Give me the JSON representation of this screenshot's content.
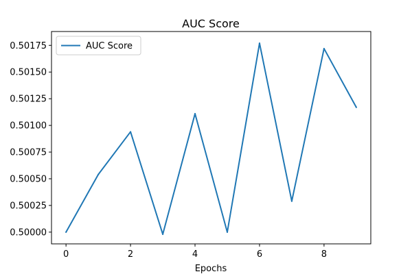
{
  "chart_data": {
    "type": "line",
    "title": "AUC Score",
    "xlabel": "Epochs",
    "ylabel": "",
    "x": [
      0,
      1,
      2,
      3,
      4,
      5,
      6,
      7,
      8,
      9
    ],
    "series": [
      {
        "name": "AUC Score",
        "color": "#1f77b4",
        "values": [
          0.5,
          0.50054,
          0.50094,
          0.49998,
          0.50111,
          0.5,
          0.50177,
          0.50029,
          0.50172,
          0.50117
        ]
      }
    ],
    "xlim": [
      -0.45,
      9.45
    ],
    "ylim": [
      0.49989,
      0.50188
    ],
    "xticks": [
      0,
      2,
      4,
      6,
      8
    ],
    "xtick_labels": [
      "0",
      "2",
      "4",
      "6",
      "8"
    ],
    "yticks": [
      0.5,
      0.50025,
      0.5005,
      0.50075,
      0.501,
      0.50125,
      0.5015,
      0.50175
    ],
    "ytick_labels": [
      "0.50000",
      "0.50025",
      "0.50050",
      "0.50075",
      "0.50100",
      "0.50125",
      "0.50150",
      "0.50175"
    ],
    "legend": {
      "position": "upper-left"
    },
    "grid": false
  }
}
